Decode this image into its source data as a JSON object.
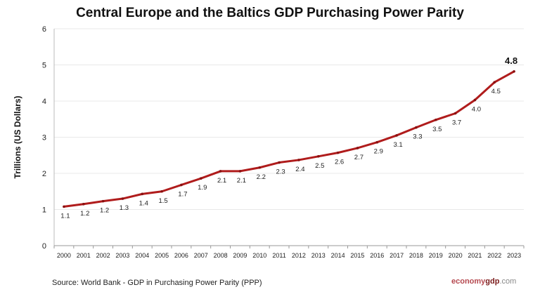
{
  "chart_data": {
    "type": "line",
    "title": "Central Europe and the Baltics GDP Purchasing Power Parity",
    "ylabel": "Trillions (US Dollars)",
    "xlabel": "",
    "ylim": [
      0,
      6
    ],
    "yticks": [
      "0",
      "1",
      "2",
      "3",
      "4",
      "5",
      "6"
    ],
    "grid": true,
    "line_color": "#b01c1c",
    "categories": [
      "2000",
      "2001",
      "2002",
      "2003",
      "2004",
      "2005",
      "2006",
      "2007",
      "2008",
      "2009",
      "2010",
      "2011",
      "2012",
      "2013",
      "2014",
      "2015",
      "2016",
      "2017",
      "2018",
      "2019",
      "2020",
      "2021",
      "2022",
      "2023"
    ],
    "values": [
      1.08,
      1.15,
      1.23,
      1.3,
      1.43,
      1.5,
      1.68,
      1.86,
      2.06,
      2.06,
      2.16,
      2.3,
      2.37,
      2.47,
      2.57,
      2.7,
      2.86,
      3.05,
      3.27,
      3.48,
      3.66,
      4.03,
      4.52,
      4.82
    ],
    "data_labels": [
      "1.1",
      "1.2",
      "1.2",
      "1.3",
      "1.4",
      "1.5",
      "1.7",
      "1.9",
      "2.1",
      "2.1",
      "2.2",
      "2.3",
      "2.4",
      "2.5",
      "2.6",
      "2.7",
      "2.9",
      "3.1",
      "3.3",
      "3.5",
      "3.7",
      "4.0",
      "4.5",
      "4.8"
    ]
  },
  "source": "Source:  World Bank -  GDP  in Purchasing Power Parity (PPP)",
  "brand": {
    "part1": "economy",
    "part2": "gdp",
    "part3": ".com"
  }
}
